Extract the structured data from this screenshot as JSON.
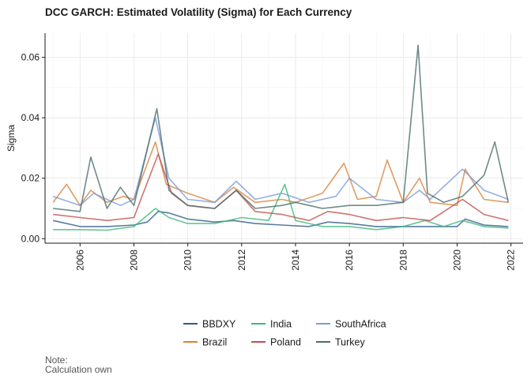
{
  "chart_data": {
    "type": "line",
    "title": "DCC GARCH: Estimated Volatility (Sigma) for Each Currency",
    "subtitle": "",
    "xlabel": "",
    "ylabel": "Sigma",
    "xlim": [
      2004.7,
      2022.45
    ],
    "ylim": [
      -0.0015,
      0.068
    ],
    "yticks": [
      0.0,
      0.02,
      0.04,
      0.06
    ],
    "ytick_labels": [
      "0.00",
      "0.02",
      "0.04",
      "0.06"
    ],
    "xticks": [
      2006,
      2008,
      2010,
      2012,
      2014,
      2016,
      2018,
      2020,
      2022
    ],
    "xtick_labels": [
      "2006",
      "2008",
      "2010",
      "2012",
      "2014",
      "2016",
      "2018",
      "2020",
      "2022"
    ],
    "grid": true,
    "legend_position": "bottom",
    "series": [
      {
        "name": "BBDXY",
        "color": "#2E5B88",
        "x": [
          2005.0,
          2006.0,
          2007.0,
          2008.0,
          2008.5,
          2008.9,
          2009.3,
          2010.0,
          2011.0,
          2011.7,
          2012.5,
          2013.5,
          2014.5,
          2015.2,
          2016.0,
          2017.0,
          2018.0,
          2019.0,
          2020.0,
          2020.3,
          2021.0,
          2021.9
        ],
        "y": [
          0.006,
          0.004,
          0.004,
          0.0045,
          0.0055,
          0.009,
          0.0085,
          0.0065,
          0.0055,
          0.006,
          0.005,
          0.0045,
          0.004,
          0.0055,
          0.005,
          0.004,
          0.004,
          0.004,
          0.004,
          0.0065,
          0.0045,
          0.004
        ]
      },
      {
        "name": "Brazil",
        "color": "#D9823B",
        "x": [
          2005.0,
          2005.5,
          2006.0,
          2006.4,
          2007.0,
          2007.6,
          2008.0,
          2008.8,
          2009.2,
          2010.0,
          2011.0,
          2011.7,
          2012.5,
          2013.5,
          2014.0,
          2015.0,
          2015.8,
          2016.3,
          2017.0,
          2017.4,
          2018.0,
          2018.6,
          2019.0,
          2020.0,
          2020.3,
          2021.0,
          2021.9
        ],
        "y": [
          0.012,
          0.018,
          0.011,
          0.016,
          0.012,
          0.014,
          0.013,
          0.032,
          0.018,
          0.015,
          0.012,
          0.017,
          0.012,
          0.013,
          0.012,
          0.015,
          0.025,
          0.013,
          0.014,
          0.026,
          0.012,
          0.02,
          0.012,
          0.011,
          0.023,
          0.013,
          0.012
        ]
      },
      {
        "name": "India",
        "color": "#3CB878",
        "x": [
          2005.0,
          2006.0,
          2007.0,
          2008.0,
          2008.8,
          2009.3,
          2010.0,
          2011.0,
          2012.0,
          2013.0,
          2013.6,
          2014.0,
          2015.0,
          2016.0,
          2017.0,
          2018.0,
          2018.8,
          2019.5,
          2020.2,
          2021.0,
          2021.9
        ],
        "y": [
          0.003,
          0.003,
          0.0028,
          0.004,
          0.01,
          0.007,
          0.005,
          0.005,
          0.007,
          0.006,
          0.018,
          0.006,
          0.004,
          0.004,
          0.003,
          0.004,
          0.006,
          0.004,
          0.006,
          0.004,
          0.0035
        ]
      },
      {
        "name": "Poland",
        "color": "#C0504D",
        "x": [
          2005.0,
          2006.0,
          2007.0,
          2008.0,
          2008.9,
          2009.4,
          2010.0,
          2011.0,
          2011.8,
          2012.5,
          2013.5,
          2014.5,
          2015.2,
          2016.0,
          2017.0,
          2018.0,
          2019.0,
          2020.2,
          2021.0,
          2021.9
        ],
        "y": [
          0.008,
          0.007,
          0.006,
          0.007,
          0.028,
          0.015,
          0.011,
          0.01,
          0.016,
          0.009,
          0.008,
          0.006,
          0.009,
          0.008,
          0.006,
          0.007,
          0.006,
          0.013,
          0.008,
          0.006
        ]
      },
      {
        "name": "SouthAfrica",
        "color": "#7A9BDB",
        "x": [
          2005.0,
          2006.0,
          2006.5,
          2007.5,
          2008.0,
          2008.8,
          2009.3,
          2010.0,
          2011.0,
          2011.8,
          2012.5,
          2013.5,
          2014.5,
          2015.5,
          2016.0,
          2017.0,
          2018.0,
          2018.6,
          2019.0,
          2020.2,
          2021.0,
          2021.9
        ],
        "y": [
          0.014,
          0.011,
          0.015,
          0.011,
          0.013,
          0.04,
          0.02,
          0.013,
          0.012,
          0.019,
          0.013,
          0.015,
          0.012,
          0.014,
          0.02,
          0.013,
          0.012,
          0.016,
          0.013,
          0.023,
          0.016,
          0.013
        ]
      },
      {
        "name": "Turkey",
        "color": "#4A6E6A",
        "x": [
          2005.0,
          2006.0,
          2006.4,
          2007.0,
          2007.5,
          2008.0,
          2008.85,
          2009.3,
          2010.0,
          2011.0,
          2011.8,
          2012.5,
          2013.5,
          2014.0,
          2015.0,
          2016.0,
          2017.0,
          2018.0,
          2018.55,
          2018.9,
          2019.5,
          2020.2,
          2021.0,
          2021.4,
          2021.9
        ],
        "y": [
          0.01,
          0.009,
          0.027,
          0.01,
          0.017,
          0.011,
          0.043,
          0.016,
          0.011,
          0.01,
          0.016,
          0.01,
          0.011,
          0.012,
          0.01,
          0.011,
          0.011,
          0.012,
          0.064,
          0.015,
          0.012,
          0.014,
          0.021,
          0.032,
          0.012
        ]
      }
    ],
    "legend_layout": [
      [
        "BBDXY",
        "India",
        "SouthAfrica"
      ],
      [
        "Brazil",
        "Poland",
        "Turkey"
      ]
    ]
  },
  "caption": {
    "line1": "Note:",
    "line2": "Calculation own"
  }
}
